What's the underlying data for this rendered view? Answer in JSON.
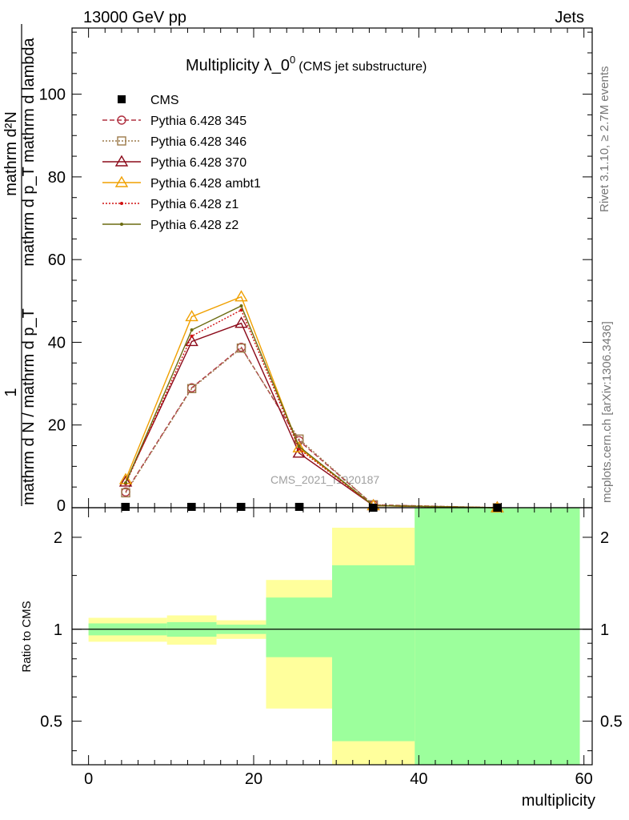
{
  "header": {
    "left": "13000 GeV pp",
    "right": "Jets",
    "title_main": "Multiplicity λ_0",
    "title_sup": "0",
    "title_sub": "(CMS jet substructure)",
    "watermark": "CMS_2021_I1920187"
  },
  "side_labels": {
    "rivet": "Rivet 3.1.10, ≥ 2.7M events",
    "mcplots": "mcplots.cern.ch [arXiv:1306.3436]"
  },
  "legend": {
    "placement": "top-left",
    "entries": [
      {
        "label": "CMS",
        "color": "#000000",
        "marker": "square",
        "dash": ""
      },
      {
        "label": "Pythia 6.428 345",
        "color": "#b03040",
        "marker": "circle",
        "dash": "6,3"
      },
      {
        "label": "Pythia 6.428 346",
        "color": "#9c7a4a",
        "marker": "square-open",
        "dash": "2,2"
      },
      {
        "label": "Pythia 6.428 370",
        "color": "#8b0a1a",
        "marker": "triangle",
        "dash": ""
      },
      {
        "label": "Pythia 6.428 ambt1",
        "color": "#f0a000",
        "marker": "triangle",
        "dash": ""
      },
      {
        "label": "Pythia 6.428 z1",
        "color": "#d01010",
        "marker": "dot",
        "dash": "2,2"
      },
      {
        "label": "Pythia 6.428 z2",
        "color": "#6b6b10",
        "marker": "dot",
        "dash": ""
      }
    ]
  },
  "chart_data": {
    "type": "line",
    "main": {
      "ylabel_top": "1",
      "ylabel_frac_num": "mathrm d²N",
      "ylabel_frac_den": "mathrm d p_T mathrm d lambda",
      "ylabel_bottom": "mathrm d N / mathrm d p_T",
      "xlim": [
        -2,
        61
      ],
      "ylim": [
        0,
        116
      ],
      "yticks": [
        20,
        40,
        60,
        80,
        100
      ],
      "ytick_labels": [
        "20",
        "40",
        "60",
        "80",
        "100"
      ],
      "ytick_zero_label": "0",
      "x": [
        4.5,
        12.5,
        18.5,
        25.5,
        34.5,
        49.5
      ],
      "series": [
        {
          "name": "CMS",
          "values": [
            0.2,
            0.2,
            0.2,
            0.2,
            0.0,
            0.0
          ]
        },
        {
          "name": "Pythia 6.428 345",
          "values": [
            3.8,
            29.0,
            38.8,
            16.2,
            0.7,
            0.0
          ]
        },
        {
          "name": "Pythia 6.428 346",
          "values": [
            3.6,
            28.8,
            38.6,
            16.6,
            0.7,
            0.0
          ]
        },
        {
          "name": "Pythia 6.428 370",
          "values": [
            6.2,
            40.2,
            44.6,
            13.2,
            0.5,
            0.0
          ]
        },
        {
          "name": "Pythia 6.428 ambt1",
          "values": [
            6.8,
            46.2,
            51.0,
            14.5,
            0.5,
            0.0
          ]
        },
        {
          "name": "Pythia 6.428 z1",
          "values": [
            5.8,
            41.5,
            47.8,
            14.2,
            0.5,
            0.0
          ]
        },
        {
          "name": "Pythia 6.428 z2",
          "values": [
            6.0,
            43.0,
            48.8,
            14.8,
            0.5,
            0.0
          ]
        }
      ]
    },
    "ratio": {
      "ylabel": "Ratio to CMS",
      "xlabel": "multiplicity",
      "log_scale": true,
      "ylim": [
        0.36,
        2.5
      ],
      "yticks": [
        0.5,
        1,
        2
      ],
      "ytick_labels": [
        "0.5",
        "1",
        "2"
      ],
      "xticks": [
        0,
        20,
        40,
        60
      ],
      "xtick_labels": [
        "0",
        "20",
        "40",
        "60"
      ],
      "reference": 1,
      "green_band_color": "#9cff9c",
      "yellow_band_color": "#ffff9c",
      "bands": [
        {
          "x0": 0,
          "x1": 9.5,
          "green": [
            0.955,
            1.045
          ],
          "yellow": [
            0.91,
            1.09
          ]
        },
        {
          "x0": 9.5,
          "x1": 15.5,
          "green": [
            0.945,
            1.055
          ],
          "yellow": [
            0.89,
            1.11
          ]
        },
        {
          "x0": 15.5,
          "x1": 21.5,
          "green": [
            0.965,
            1.035
          ],
          "yellow": [
            0.93,
            1.07
          ]
        },
        {
          "x0": 21.5,
          "x1": 29.5,
          "green": [
            0.81,
            1.27
          ],
          "yellow": [
            0.55,
            1.45
          ]
        },
        {
          "x0": 29.5,
          "x1": 39.5,
          "green": [
            0.36,
            1.62
          ],
          "yellow": [
            0.36,
            2.15
          ]
        },
        {
          "x0": 39.5,
          "x1": 59.5,
          "green": [
            0.36,
            2.5
          ],
          "yellow": [
            0.36,
            2.5
          ]
        }
      ],
      "yellow_gaps": [
        {
          "x0": 29.5,
          "x1": 39.5,
          "range": [
            0.36,
            0.43
          ]
        }
      ]
    }
  }
}
